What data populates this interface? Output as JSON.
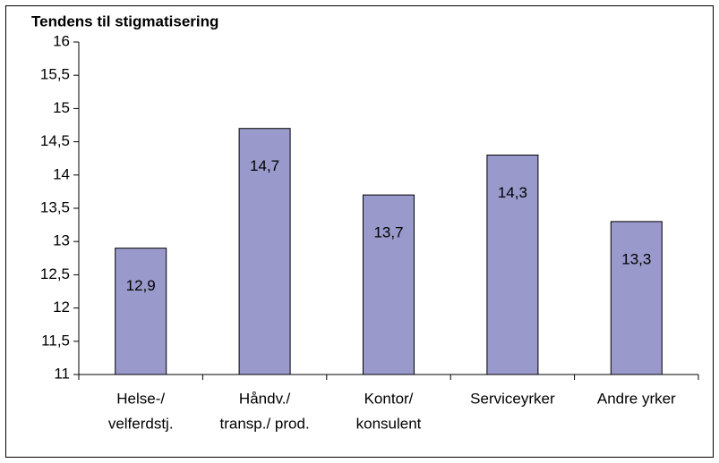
{
  "chart_data": {
    "type": "bar",
    "title": "Tendens til stigmatisering",
    "categories": [
      [
        "Helse-/",
        "velferdstj."
      ],
      [
        "Håndv./",
        "transp./ prod."
      ],
      [
        "Kontor/",
        "konsulent"
      ],
      [
        "Serviceyrker"
      ],
      [
        "Andre yrker"
      ]
    ],
    "values": [
      12.9,
      14.7,
      13.7,
      14.3,
      13.3
    ],
    "value_labels": [
      "12,9",
      "14,7",
      "13,7",
      "14,3",
      "13,3"
    ],
    "color": "#9999cc",
    "ylim": [
      11,
      16
    ],
    "yticks": [
      11,
      {
        "value": 11.5,
        "label": "11,5"
      },
      12,
      {
        "value": 12.5,
        "label": "12,5"
      },
      13,
      {
        "value": 13.5,
        "label": "13,5"
      },
      14,
      {
        "value": 14.5,
        "label": "14,5"
      },
      15,
      {
        "value": 15.5,
        "label": "15,5"
      },
      16
    ],
    "grid": false
  }
}
